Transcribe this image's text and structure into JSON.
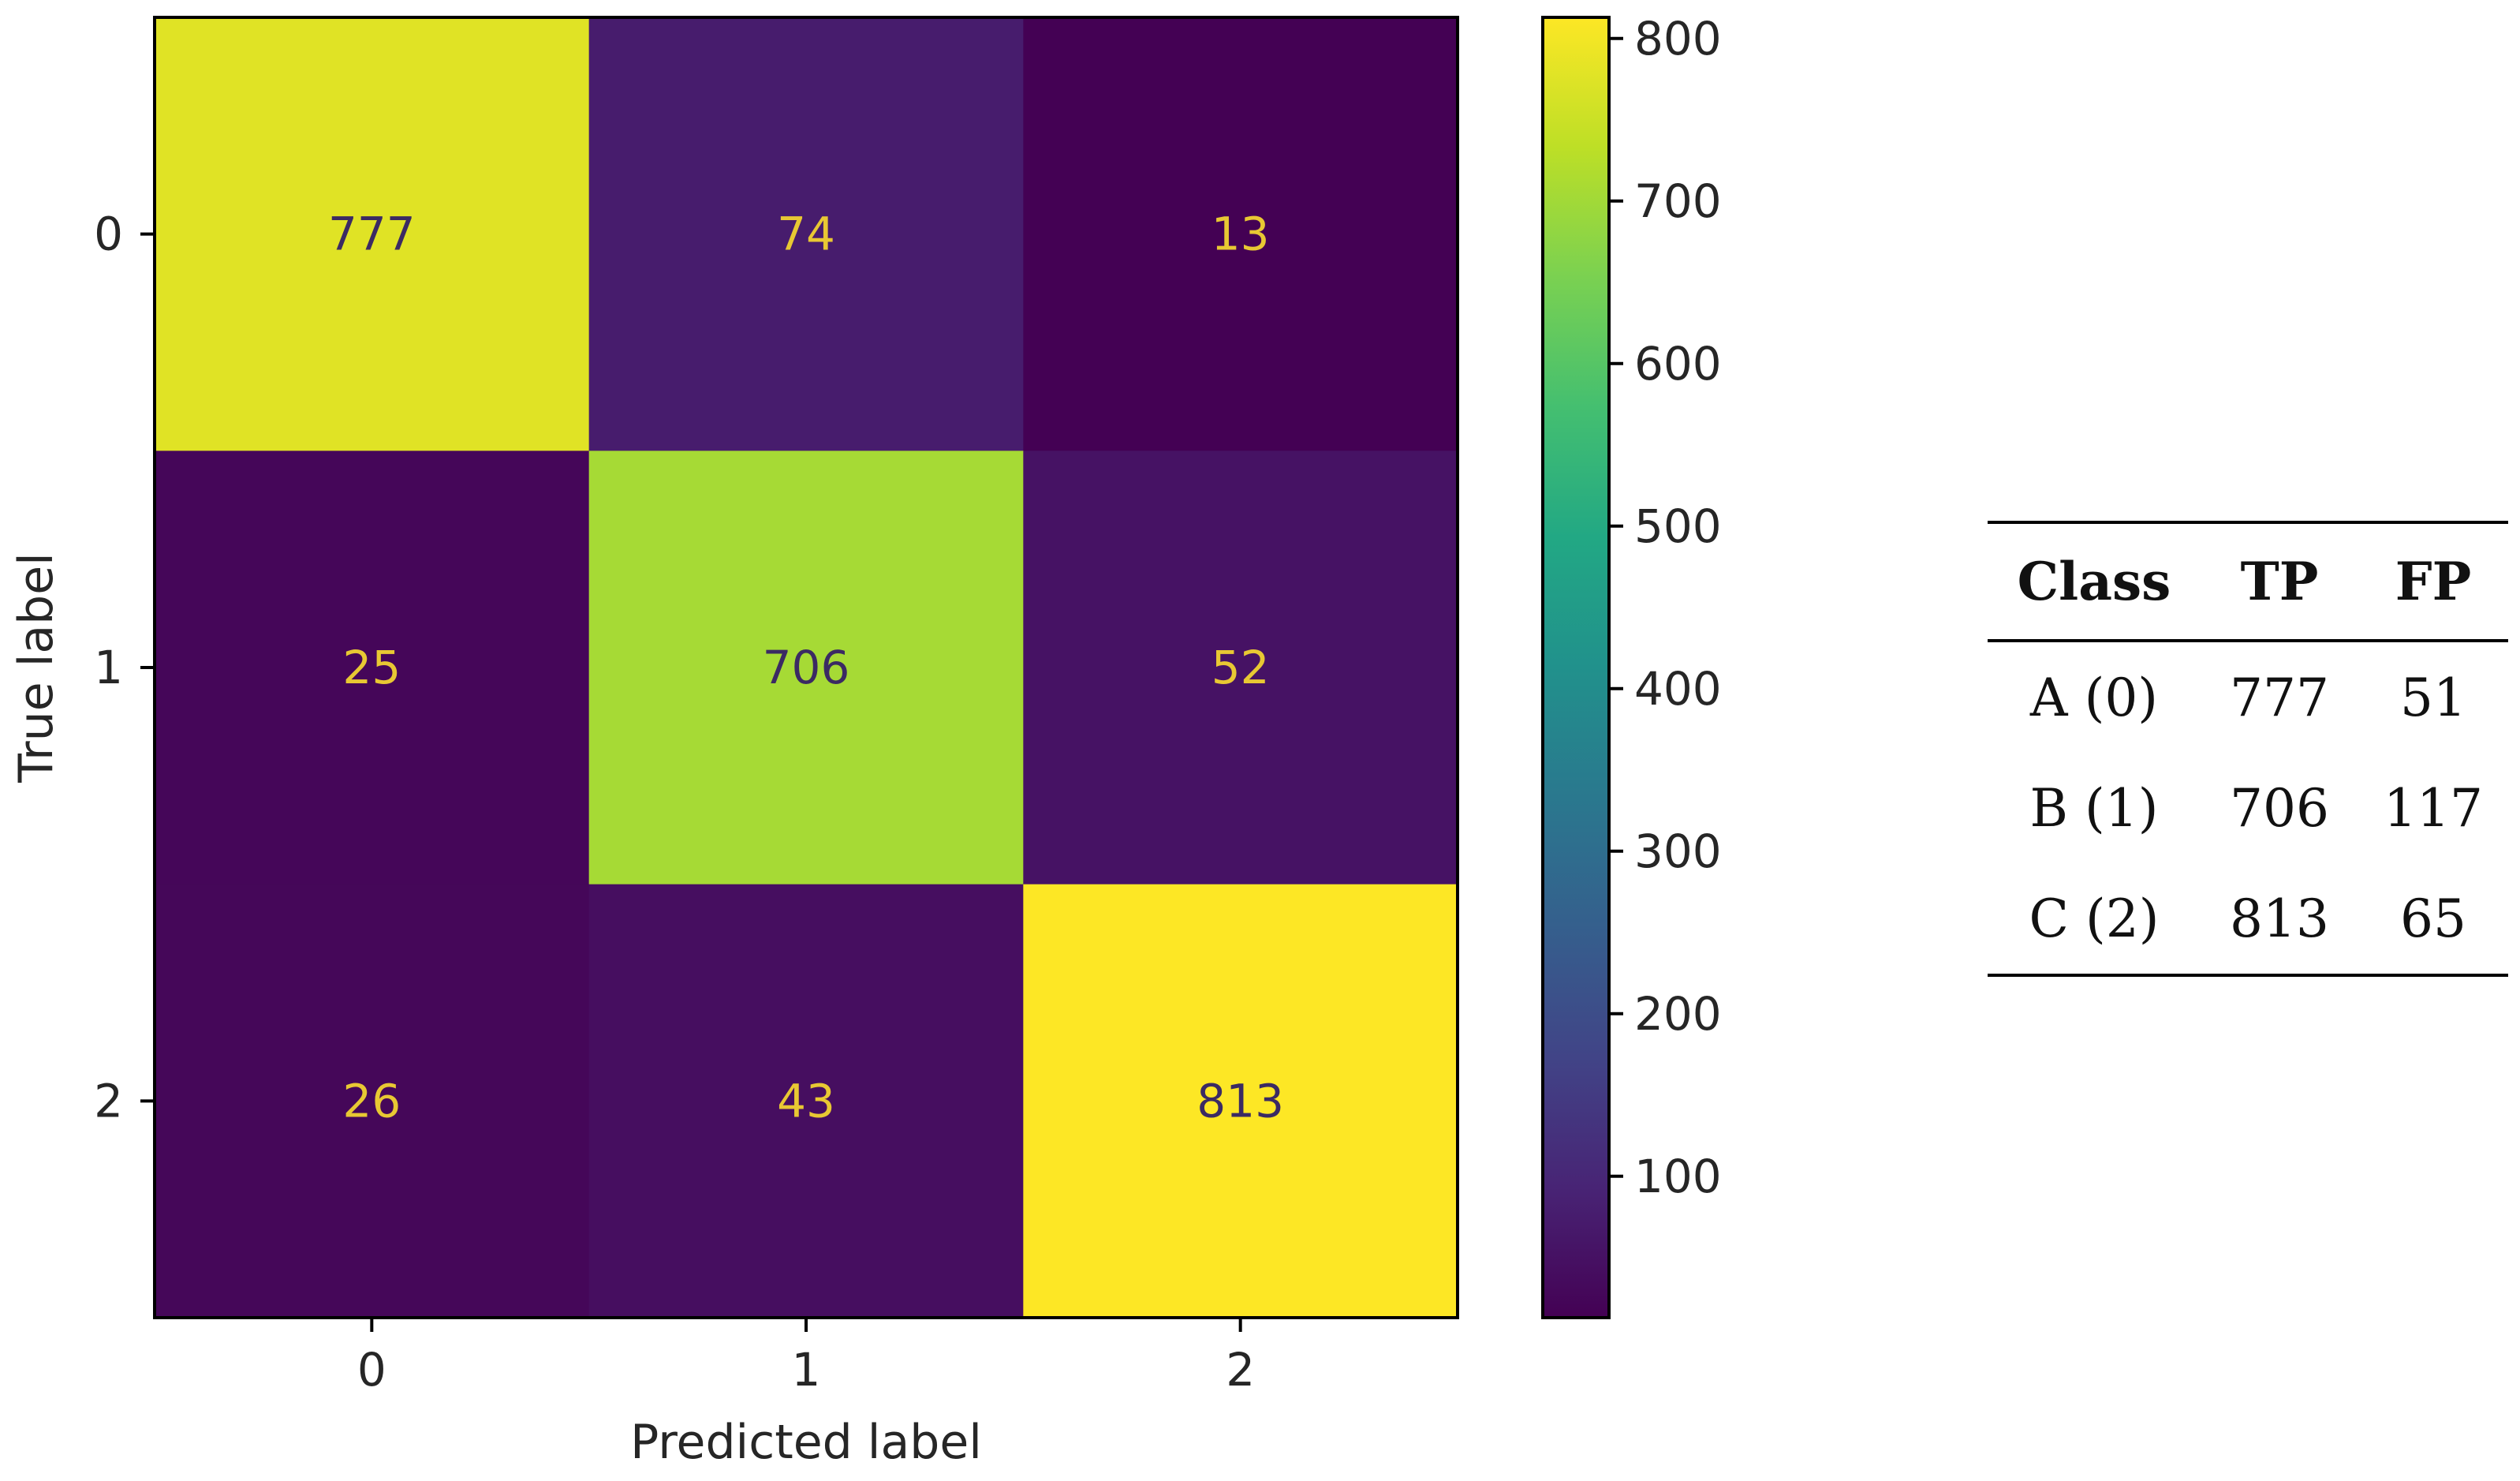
{
  "chart_data": [
    {
      "type": "heatmap",
      "title": "",
      "xlabel": "Predicted label",
      "ylabel": "True label",
      "x_categories": [
        "0",
        "1",
        "2"
      ],
      "y_categories": [
        "0",
        "1",
        "2"
      ],
      "values": [
        [
          777,
          74,
          13
        ],
        [
          25,
          706,
          52
        ],
        [
          26,
          43,
          813
        ]
      ],
      "colormap": "viridis",
      "colorbar": {
        "range": [
          13,
          813
        ],
        "ticks": [
          100,
          200,
          300,
          400,
          500,
          600,
          700,
          800
        ]
      },
      "grid": false
    },
    {
      "type": "table",
      "columns": [
        "Class",
        "TP",
        "FP"
      ],
      "rows": [
        [
          "A (0)",
          "777",
          "51"
        ],
        [
          "B (1)",
          "706",
          "117"
        ],
        [
          "C (2)",
          "813",
          "65"
        ]
      ]
    }
  ]
}
